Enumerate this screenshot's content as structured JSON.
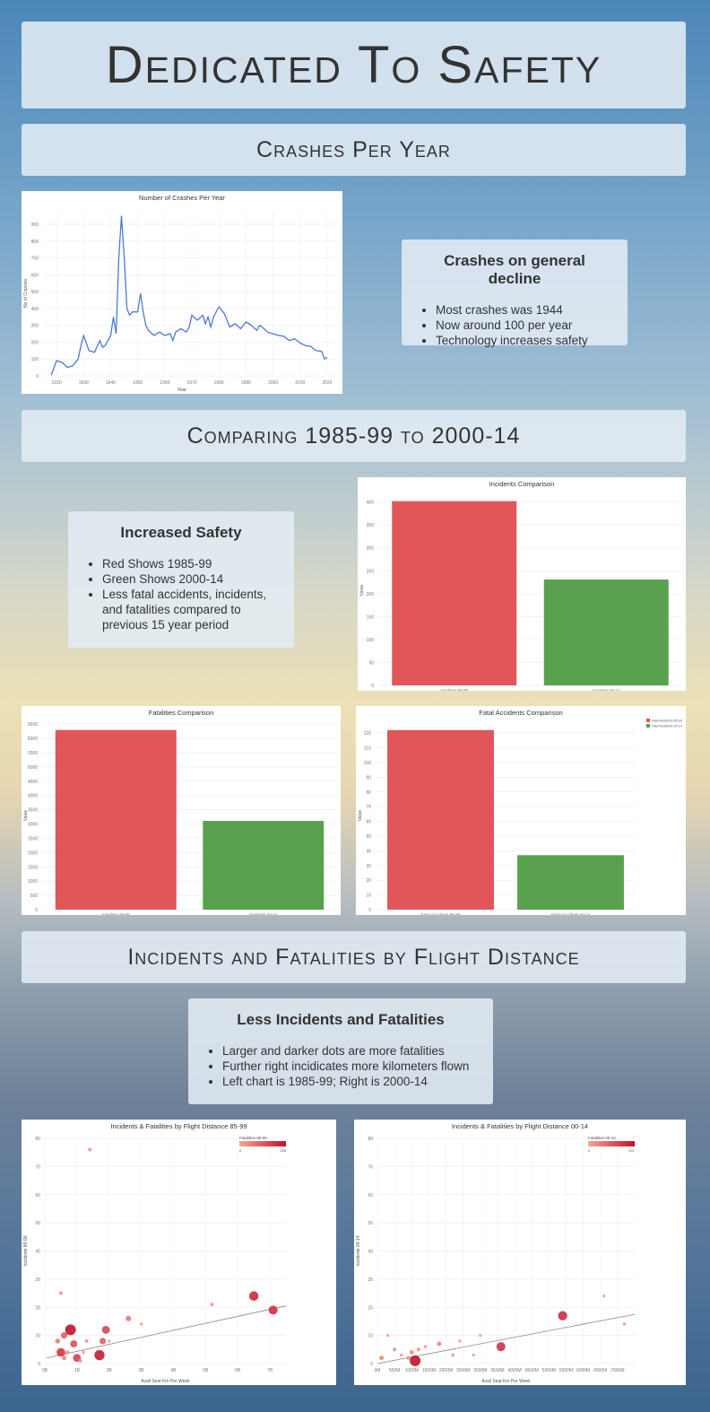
{
  "header": {
    "title": "Dedicated To Safety"
  },
  "sections": {
    "crashes_per_year": "Crashes Per Year",
    "comparing": "Comparing 1985-99 to 2000-14",
    "distance": "Incidents and Fatalities by Flight Distance"
  },
  "notes": {
    "decline": {
      "title": "Crashes on general decline",
      "items": [
        "Most crashes was 1944",
        "Now around 100 per year",
        "Technology increases safety"
      ]
    },
    "safety": {
      "title": "Increased Safety",
      "items": [
        "Red Shows 1985-99",
        "Green Shows 2000-14",
        "Less fatal accidents, incidents, and fatalities compared to previous 15 year period"
      ]
    },
    "less": {
      "title": "Less Incidents and Fatalities",
      "items": [
        "Larger and darker dots are more fatalities",
        "Further right incidicates more kilometers flown",
        "Left chart is 1985-99; Right is 2000-14"
      ]
    }
  },
  "colors": {
    "red": "#e15759",
    "green": "#59a14f",
    "line": "#4e79d6",
    "dark_red": "#b2182b",
    "light_red": "#f4a582"
  },
  "chart_data": [
    {
      "id": "crashes",
      "type": "line",
      "title": "Number of Crashes Per Year",
      "xlabel": "Year",
      "ylabel": "No of Crashes",
      "xlim": [
        1915,
        2023
      ],
      "ylim": [
        0,
        980
      ],
      "xticks": [
        1920,
        1930,
        1940,
        1950,
        1960,
        1970,
        1980,
        1990,
        2000,
        2010,
        2020
      ],
      "yticks": [
        0,
        100,
        200,
        300,
        400,
        500,
        600,
        700,
        800,
        900
      ],
      "x": [
        1918,
        1920,
        1922,
        1924,
        1926,
        1928,
        1929,
        1930,
        1932,
        1934,
        1936,
        1937,
        1938,
        1940,
        1941,
        1942,
        1943,
        1944,
        1945,
        1946,
        1947,
        1948,
        1950,
        1951,
        1952,
        1953,
        1954,
        1956,
        1958,
        1960,
        1962,
        1963,
        1964,
        1966,
        1968,
        1969,
        1970,
        1972,
        1974,
        1975,
        1976,
        1977,
        1978,
        1980,
        1982,
        1984,
        1986,
        1988,
        1990,
        1992,
        1994,
        1995,
        1996,
        1998,
        2000,
        2002,
        2004,
        2006,
        2008,
        2010,
        2012,
        2014,
        2015,
        2016,
        2018,
        2019,
        2020
      ],
      "y": [
        5,
        90,
        80,
        50,
        60,
        100,
        180,
        240,
        150,
        140,
        210,
        170,
        180,
        240,
        350,
        250,
        700,
        950,
        700,
        400,
        360,
        380,
        380,
        490,
        380,
        300,
        270,
        240,
        260,
        240,
        250,
        210,
        260,
        280,
        260,
        290,
        360,
        330,
        360,
        310,
        350,
        290,
        350,
        410,
        370,
        290,
        310,
        280,
        320,
        300,
        270,
        300,
        290,
        260,
        250,
        240,
        235,
        210,
        220,
        195,
        180,
        175,
        160,
        150,
        145,
        100,
        110
      ]
    },
    {
      "id": "incidents",
      "type": "bar",
      "title": "Incidents Comparison",
      "ylabel": "Value",
      "ylim": [
        0,
        415
      ],
      "yticks": [
        0,
        50,
        100,
        150,
        200,
        250,
        300,
        350,
        400
      ],
      "categories": [
        "Incidents 85-99",
        "Incidents 00-14"
      ],
      "values": [
        402,
        231
      ]
    },
    {
      "id": "fatalities",
      "type": "bar",
      "title": "Fatalities Comparison",
      "ylabel": "Value",
      "ylim": [
        0,
        6600
      ],
      "yticks": [
        0,
        500,
        1000,
        1500,
        2000,
        2500,
        3000,
        3500,
        4000,
        4500,
        5000,
        5500,
        6000,
        6500
      ],
      "categories": [
        "Fatalities 85-99",
        "Fatalities 00-14"
      ],
      "values": [
        6295,
        3109
      ]
    },
    {
      "id": "fatal_accidents",
      "type": "bar",
      "title": "Fatal Accidents Comparison",
      "ylabel": "Value",
      "ylim": [
        0,
        128
      ],
      "yticks": [
        0,
        10,
        20,
        30,
        40,
        50,
        60,
        70,
        80,
        90,
        100,
        110,
        120
      ],
      "categories": [
        "Fatal Accidents 85-99",
        "Fatal Accidents 00-14"
      ],
      "values": [
        122,
        37
      ],
      "legend": [
        "Fatal Accidents 85-99",
        "Fatal Accidents 00-14"
      ]
    },
    {
      "id": "scatter85",
      "type": "scatter",
      "title": "Incidents & Fatalities by Flight Distance 85-99",
      "xlabel": "Avail Seat Km Per Week",
      "ylabel": "Incidents 85-99",
      "xlim": [
        0,
        75
      ],
      "ylim": [
        0,
        80
      ],
      "xtick_labels": [
        "0B",
        "1B",
        "2B",
        "3B",
        "4B",
        "5B",
        "6B",
        "7B"
      ],
      "xtick_values": [
        0,
        10,
        20,
        30,
        40,
        50,
        60,
        70
      ],
      "yticks": [
        0,
        10,
        20,
        30,
        40,
        50,
        60,
        70,
        80
      ],
      "legend": {
        "title": "Fatalities 85-99",
        "min": "0",
        "max": "535"
      },
      "trend": [
        [
          0.5,
          2
        ],
        [
          75,
          20.5
        ]
      ],
      "points": [
        [
          4,
          8,
          150
        ],
        [
          5,
          25,
          60
        ],
        [
          6,
          10,
          250
        ],
        [
          7,
          4,
          80
        ],
        [
          8,
          12,
          535
        ],
        [
          9,
          7,
          300
        ],
        [
          5,
          4,
          400
        ],
        [
          10,
          2,
          350
        ],
        [
          6,
          2,
          120
        ],
        [
          11,
          1,
          80
        ],
        [
          12,
          4,
          40
        ],
        [
          13,
          8,
          60
        ],
        [
          14,
          76,
          70
        ],
        [
          17,
          3,
          500
        ],
        [
          18,
          8,
          250
        ],
        [
          19,
          12,
          350
        ],
        [
          20,
          8,
          20
        ],
        [
          26,
          16,
          180
        ],
        [
          30,
          14,
          20
        ],
        [
          52,
          21,
          60
        ],
        [
          65,
          24,
          450
        ],
        [
          71,
          19,
          420
        ]
      ]
    },
    {
      "id": "scatter00",
      "type": "scatter",
      "title": "Incidents & Fatalities by Flight Distance 00-14",
      "xlabel": "Avail Seat Km Per Week",
      "ylabel": "Incidents 00-14",
      "xlim": [
        0,
        7500
      ],
      "ylim": [
        0,
        80
      ],
      "xtick_labels": [
        "0M",
        "500M",
        "1000M",
        "1500M",
        "2000M",
        "2500M",
        "3000M",
        "3500M",
        "4000M",
        "4500M",
        "5000M",
        "5500M",
        "6000M",
        "6500M",
        "7000M"
      ],
      "xtick_values": [
        0,
        500,
        1000,
        1500,
        2000,
        2500,
        3000,
        3500,
        4000,
        4500,
        5000,
        5500,
        6000,
        6500,
        7000
      ],
      "yticks": [
        0,
        10,
        20,
        30,
        40,
        50,
        60,
        70,
        80
      ],
      "legend": {
        "title": "Fatalities 00-14",
        "min": "0",
        "max": "537"
      },
      "trend": [
        [
          0,
          0
        ],
        [
          7500,
          17.5
        ]
      ],
      "points": [
        [
          120,
          2,
          120
        ],
        [
          300,
          10,
          30
        ],
        [
          500,
          5,
          60
        ],
        [
          700,
          3,
          40
        ],
        [
          900,
          2,
          80
        ],
        [
          1000,
          4,
          100
        ],
        [
          1100,
          1,
          537
        ],
        [
          1200,
          5,
          60
        ],
        [
          1400,
          6,
          40
        ],
        [
          1800,
          7,
          120
        ],
        [
          2200,
          3,
          40
        ],
        [
          2400,
          8,
          30
        ],
        [
          2800,
          3,
          20
        ],
        [
          3000,
          10,
          15
        ],
        [
          3600,
          6,
          420
        ],
        [
          5400,
          17,
          440
        ],
        [
          6600,
          24,
          20
        ],
        [
          7200,
          14,
          40
        ]
      ]
    }
  ]
}
